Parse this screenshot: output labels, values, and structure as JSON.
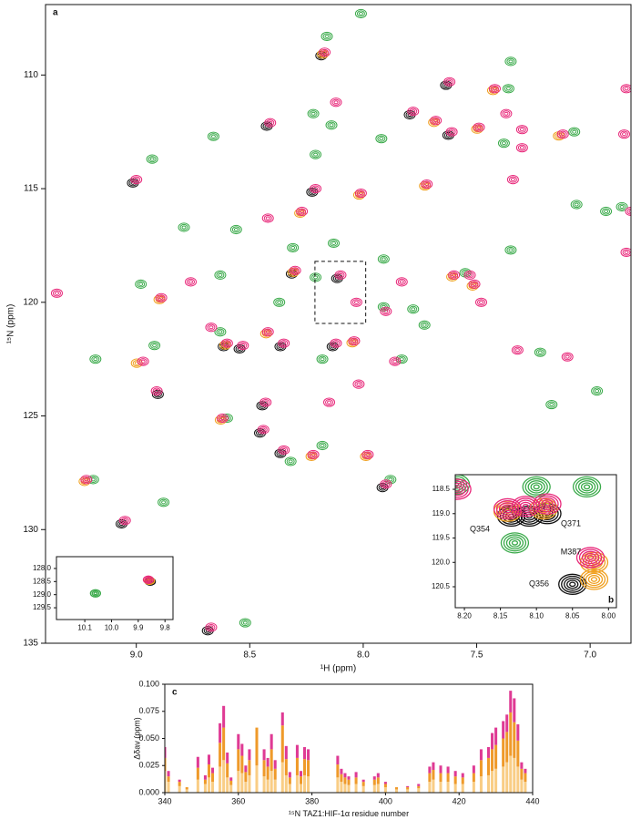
{
  "chart_data": [
    {
      "type": "scatter",
      "panel": "a",
      "xlabel": "¹H (ppm)",
      "ylabel": "¹⁵N (ppm)",
      "xlim": [
        9.4,
        6.82
      ],
      "ylim": [
        106.9,
        135
      ],
      "y_inverted": true,
      "xticks": [
        {
          "value": 9,
          "label": "9.0"
        },
        8.5,
        {
          "value": 8,
          "label": "8.0"
        },
        7.5,
        {
          "value": 7,
          "label": "7.0"
        }
      ],
      "yticks": [
        110,
        115,
        120,
        125,
        130,
        135
      ],
      "series": [
        {
          "color": "#3aaa4a",
          "x": [
            8.16,
            8.01,
            7.35,
            7.36,
            8.22,
            8.14,
            7.92,
            8.66,
            8.93,
            8.21,
            7.07,
            7.38,
            8.79,
            8.56,
            8.31,
            8.13,
            7.91,
            7.55,
            7.35,
            6.93,
            6.86,
            7.06,
            8.63,
            8.98,
            8.92,
            9.18,
            8.63,
            8.37,
            7.91,
            7.78,
            7.83,
            8.18,
            7.22,
            6.97,
            7.17,
            8.32,
            8.18,
            7.88,
            8.88,
            9.19,
            8.52,
            8.6,
            7.73,
            8.21
          ],
          "y": [
            108.3,
            107.3,
            109.4,
            110.6,
            111.7,
            112.2,
            112.8,
            112.7,
            113.7,
            113.5,
            112.5,
            113,
            116.7,
            116.8,
            117.6,
            117.4,
            118.1,
            118.7,
            117.7,
            116,
            115.8,
            115.7,
            118.8,
            119.2,
            121.9,
            122.5,
            121.3,
            120,
            120.2,
            120.3,
            122.5,
            122.5,
            122.2,
            123.9,
            124.5,
            127,
            126.3,
            127.8,
            128.8,
            127.8,
            134.1,
            125.1,
            121,
            118.9
          ]
        },
        {
          "color": "#111111",
          "x": [
            8.185,
            7.635,
            7.795,
            7.625,
            8.425,
            9.015,
            8.225,
            8.315,
            8.115,
            8.615,
            8.545,
            8.365,
            8.135,
            8.905,
            8.445,
            8.455,
            8.365,
            7.915,
            9.065,
            8.685
          ],
          "y": [
            109.15,
            110.45,
            111.75,
            112.65,
            112.25,
            114.75,
            115.15,
            118.75,
            118.95,
            121.95,
            122.05,
            121.95,
            121.95,
            124.05,
            124.55,
            125.75,
            126.65,
            128.15,
            129.75,
            134.45
          ]
        },
        {
          "color": "#f0a020",
          "x": [
            8.178,
            7.428,
            7.688,
            7.498,
            7.138,
            8.018,
            7.728,
            8.278,
            8.308,
            7.608,
            7.518,
            8.898,
            8.608,
            8.428,
            8.048,
            8.998,
            8.628,
            8.228,
            7.988,
            9.228
          ],
          "y": [
            109.08,
            110.68,
            112.08,
            112.38,
            112.68,
            115.28,
            114.88,
            116.08,
            118.68,
            118.88,
            119.28,
            119.88,
            121.88,
            121.38,
            121.78,
            122.68,
            125.18,
            126.78,
            126.78,
            127.88
          ]
        },
        {
          "color": "#e8287a",
          "x": [
            8.17,
            7.62,
            7.42,
            7.37,
            7.78,
            7.68,
            7.61,
            7.49,
            7.3,
            7.12,
            6.85,
            6.84,
            7.3,
            8.41,
            9,
            8.12,
            8.21,
            8.01,
            7.72,
            7.34,
            8.42,
            8.27,
            8.3,
            8.1,
            8.03,
            7.9,
            7.6,
            7.51,
            7.53,
            8.76,
            8.89,
            9.35,
            8.67,
            8.6,
            8.53,
            8.42,
            8.35,
            8.12,
            8.04,
            7.86,
            8.97,
            8.91,
            8.43,
            8.44,
            8.62,
            8.35,
            8.22,
            7.98,
            7.9,
            9.22,
            9.05,
            8.67,
            7.32,
            7.1,
            6.84,
            6.82,
            7.48,
            7.83,
            8.02,
            8.15
          ],
          "y": [
            109,
            110.3,
            110.6,
            111.7,
            111.6,
            112,
            112.5,
            112.3,
            112.4,
            112.6,
            112.6,
            110.6,
            113.2,
            112.1,
            114.6,
            111.2,
            115,
            115.2,
            114.8,
            114.6,
            116.3,
            116,
            118.6,
            118.8,
            120,
            120.4,
            118.8,
            119.2,
            118.8,
            119.1,
            119.8,
            119.6,
            121.1,
            121.8,
            121.9,
            121.3,
            121.8,
            121.8,
            121.7,
            122.6,
            122.6,
            123.9,
            124.4,
            125.6,
            125.1,
            126.5,
            126.7,
            126.7,
            128,
            127.8,
            129.6,
            134.3,
            122.1,
            122.4,
            117.8,
            116,
            120,
            119.1,
            123.6,
            124.4
          ]
        }
      ]
    },
    {
      "type": "scatter",
      "xlim": [
        10.206,
        9.77
      ],
      "ylim": [
        127.55,
        129.95
      ],
      "y_inverted": true,
      "xticks": [
        10.1,
        {
          "value": 10,
          "label": "10.0"
        },
        9.9,
        9.8
      ],
      "yticks": [
        {
          "value": 128,
          "label": "128.0"
        },
        128.5,
        {
          "value": 129,
          "label": "129.0"
        },
        129.5
      ],
      "series": [
        {
          "color": "#3aaa4a",
          "x": [
            10.06
          ],
          "y": [
            128.95
          ]
        },
        {
          "color": "#111111",
          "x": [
            9.855
          ],
          "y": [
            128.5
          ]
        },
        {
          "color": "#f0a020",
          "x": [
            9.858
          ],
          "y": [
            128.47
          ]
        },
        {
          "color": "#e8287a",
          "x": [
            9.862
          ],
          "y": [
            128.43
          ]
        }
      ]
    },
    {
      "type": "scatter",
      "panel": "b",
      "xlim": [
        8.2127,
        7.989
      ],
      "ylim": [
        118.2,
        120.93
      ],
      "y_inverted": true,
      "xticks": [
        {
          "value": 8.2,
          "label": "8.20"
        },
        8.15,
        {
          "value": 8.1,
          "label": "8.10"
        },
        8.05,
        {
          "value": 8,
          "label": "8.00"
        }
      ],
      "yticks": [
        118.5,
        {
          "value": 119,
          "label": "119.0"
        },
        119.5,
        {
          "value": 120,
          "label": "120.0"
        },
        120.5
      ],
      "annotations": [
        "Q354",
        "Q371",
        "M387",
        "Q356"
      ],
      "series": [
        {
          "color": "#3aaa4a",
          "x": [
            8.212,
            8.1,
            8.03,
            8.13
          ],
          "y": [
            118.4,
            118.45,
            118.45,
            119.6
          ]
        },
        {
          "color": "#111111",
          "x": [
            8.135,
            8.11,
            8.085,
            8.05
          ],
          "y": [
            119.05,
            119.05,
            119.0,
            120.45
          ]
        },
        {
          "color": "#f0a020",
          "x": [
            8.14,
            8.09,
            8.02,
            8.02
          ],
          "y": [
            118.95,
            118.9,
            120.0,
            120.35
          ]
        },
        {
          "color": "#e8287a",
          "x": [
            8.14,
            8.115,
            8.085,
            8.025,
            8.21
          ],
          "y": [
            118.9,
            118.85,
            118.8,
            119.9,
            118.5
          ]
        }
      ]
    },
    {
      "type": "stacked_bar",
      "panel": "c",
      "xlabel": "¹⁵N TAZ1:HIF-1α residue number",
      "ylabel": "Δδav (ppm)",
      "xlim": [
        340,
        440
      ],
      "ylim": [
        0,
        0.1
      ],
      "xticks": [
        340,
        360,
        380,
        400,
        420,
        440
      ],
      "yticks": [
        {
          "value": 0,
          "label": "0.000"
        },
        {
          "value": 0.025,
          "label": "0.025"
        },
        {
          "value": 0.05,
          "label": "0.050"
        },
        {
          "value": 0.075,
          "label": "0.075"
        },
        {
          "value": 0.1,
          "label": "0.100"
        }
      ],
      "x": [
        340,
        341,
        344,
        346,
        349,
        351,
        352,
        353,
        355,
        356,
        357,
        358,
        360,
        361,
        362,
        363,
        365,
        367,
        368,
        369,
        370,
        372,
        373,
        374,
        376,
        377,
        378,
        379,
        387,
        388,
        389,
        390,
        392,
        394,
        397,
        398,
        400,
        403,
        406,
        409,
        412,
        413,
        415,
        417,
        419,
        421,
        424,
        426,
        428,
        429,
        430,
        432,
        433,
        434,
        435,
        436,
        437,
        438
      ],
      "series": [
        {
          "color": "#f9cd85",
          "values": [
            0.02,
            0.01,
            0.006,
            0.003,
            0.012,
            0.008,
            0.014,
            0.01,
            0.024,
            0.03,
            0.014,
            0.007,
            0.02,
            0.018,
            0.01,
            0.016,
            0.025,
            0.015,
            0.012,
            0.02,
            0.012,
            0.028,
            0.016,
            0.008,
            0.016,
            0.008,
            0.016,
            0.015,
            0.014,
            0.01,
            0.008,
            0.007,
            0.008,
            0.006,
            0.007,
            0.008,
            0.005,
            0.003,
            0.003,
            0.004,
            0.01,
            0.012,
            0.01,
            0.01,
            0.008,
            0.008,
            0.01,
            0.015,
            0.016,
            0.02,
            0.022,
            0.024,
            0.028,
            0.034,
            0.032,
            0.024,
            0.012,
            0.01
          ]
        },
        {
          "color": "#ef9a2a",
          "values": [
            0.012,
            0.005,
            0.004,
            0.002,
            0.011,
            0.004,
            0.012,
            0.008,
            0.022,
            0.03,
            0.013,
            0.004,
            0.02,
            0.016,
            0.009,
            0.014,
            0.035,
            0.015,
            0.012,
            0.02,
            0.01,
            0.034,
            0.015,
            0.006,
            0.016,
            0.007,
            0.015,
            0.015,
            0.012,
            0.007,
            0.006,
            0.005,
            0.006,
            0.004,
            0.005,
            0.006,
            0.003,
            0.002,
            0.002,
            0.002,
            0.008,
            0.009,
            0.008,
            0.008,
            0.007,
            0.006,
            0.008,
            0.015,
            0.016,
            0.02,
            0.022,
            0.026,
            0.028,
            0.04,
            0.033,
            0.024,
            0.01,
            0.008
          ]
        },
        {
          "color": "#df3a94",
          "values": [
            0.01,
            0.005,
            0.002,
            0,
            0.01,
            0.004,
            0.009,
            0.005,
            0.018,
            0.02,
            0.01,
            0.003,
            0.014,
            0.011,
            0.006,
            0.01,
            0,
            0.01,
            0.008,
            0.014,
            0.008,
            0.012,
            0.012,
            0.005,
            0.012,
            0.005,
            0.011,
            0.01,
            0.008,
            0.005,
            0.004,
            0.003,
            0.005,
            0.002,
            0.003,
            0.004,
            0.002,
            0,
            0.001,
            0.002,
            0.006,
            0.007,
            0.007,
            0.006,
            0.005,
            0.004,
            0.007,
            0.01,
            0.01,
            0.015,
            0.016,
            0.016,
            0.016,
            0.02,
            0.022,
            0.015,
            0.006,
            0.004
          ]
        }
      ]
    }
  ]
}
